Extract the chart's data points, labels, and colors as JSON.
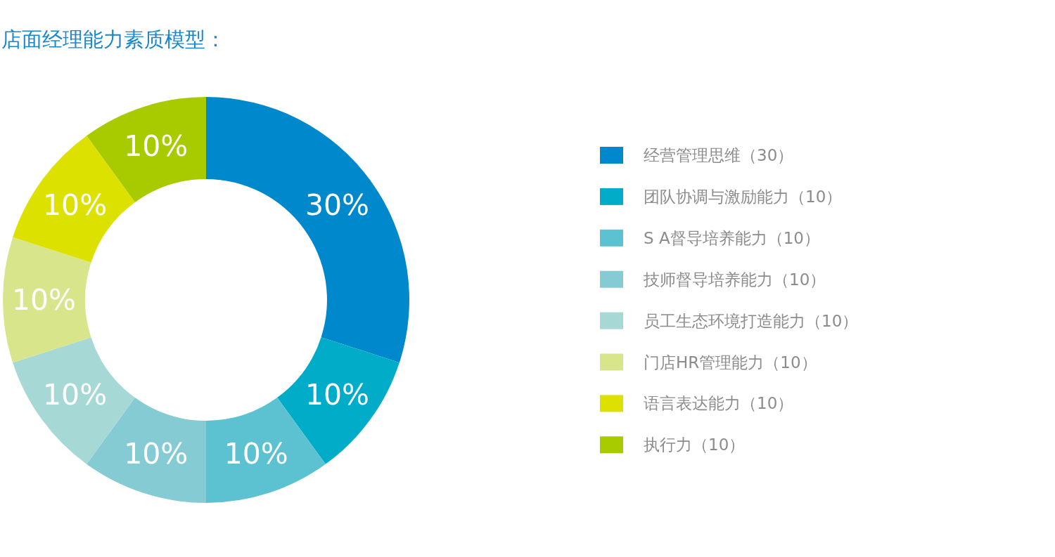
{
  "chart_data": {
    "type": "donut",
    "title": "店面经理能力素质模型：",
    "categories": [
      "经营管理思维（30）",
      "团队协调与激励能力（10）",
      "S A督导培养能力（10）",
      "技师督导培养能力（10）",
      "员工生态环境打造能力（10）",
      "门店HR管理能力（10）",
      "语言表达能力（10）",
      "执行力（10）"
    ],
    "values": [
      30,
      10,
      10,
      10,
      10,
      10,
      10,
      10
    ],
    "colors": [
      "#0088cc",
      "#00acc8",
      "#5cc2d2",
      "#84cbd3",
      "#a6d8d6",
      "#d9e58a",
      "#dce100",
      "#a8cb00"
    ],
    "value_labels": [
      "30%",
      "10%",
      "10%",
      "10%",
      "10%",
      "10%",
      "10%",
      "10%"
    ],
    "legend": "right"
  }
}
